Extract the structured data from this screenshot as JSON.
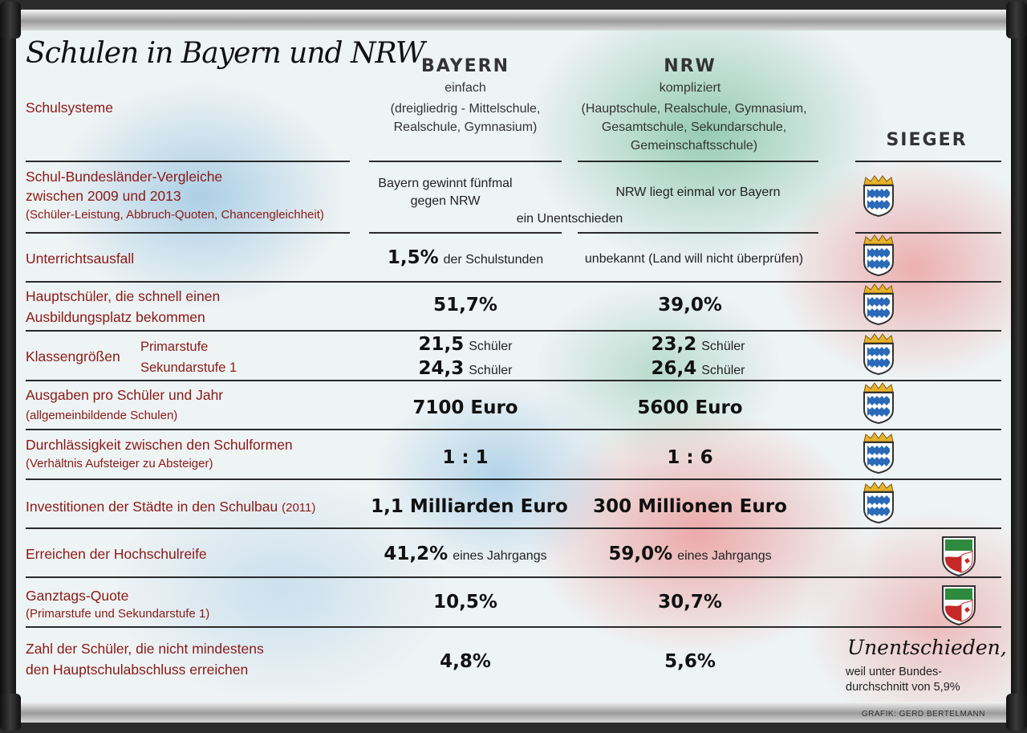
{
  "title": "Schulen in Bayern und NRW",
  "columns": {
    "bayern": {
      "name": "BAYERN",
      "rating": "einfach"
    },
    "nrw": {
      "name": "NRW",
      "rating": "kompliziert"
    },
    "winner": {
      "name": "SIEGER"
    }
  },
  "rows": {
    "schulsysteme": {
      "label": "Schulsysteme",
      "bayern": "(dreigliedrig - Mittelschule, Realschule, Gymnasium)",
      "nrw": "(Hauptschule, Realschule, Gymnasium, Gesamtschule, Sekundarschule, Gemeinschaftsschule)"
    },
    "vergleiche": {
      "label_line1": "Schul-Bundesländer-Vergleiche",
      "label_line2": "zwischen 2009 und 2013",
      "note": "(Schüler-Leistung, Abbruch-Quoten, Chancengleichheit)",
      "bayern_line1": "Bayern gewinnt fünfmal",
      "bayern_line2": "gegen NRW",
      "nrw": "NRW liegt einmal vor Bayern",
      "draw": "ein Unentschieden",
      "winner": "bavaria-crest-icon"
    },
    "unterrichtsausfall": {
      "label": "Unterrichtsausfall",
      "bayern_value": "1,5%",
      "bayern_unit": "der Schulstunden",
      "nrw": "unbekannt (Land will nicht überprüfen)",
      "winner": "bavaria-crest-icon"
    },
    "hauptschueler": {
      "label_line1": "Hauptschüler, die schnell einen",
      "label_line2": "Ausbildungsplatz bekommen",
      "bayern_value": "51,7%",
      "nrw_value": "39,0%",
      "winner": "bavaria-crest-icon"
    },
    "klassengroessen": {
      "label": "Klassengrößen",
      "sub1": "Primarstufe",
      "sub2": "Sekundarstufe 1",
      "bayern_value1": "21,5",
      "bayern_value2": "24,3",
      "nrw_value1": "23,2",
      "nrw_value2": "26,4",
      "unit": "Schüler",
      "winner": "bavaria-crest-icon"
    },
    "ausgaben": {
      "label": "Ausgaben pro Schüler und Jahr",
      "note": "(allgemeinbildende Schulen)",
      "bayern_value": "7100 Euro",
      "nrw_value": "5600 Euro",
      "winner": "bavaria-crest-icon"
    },
    "durchlaessigkeit": {
      "label": "Durchlässigkeit zwischen den Schulformen",
      "note": "(Verhältnis Aufsteiger zu Absteiger)",
      "bayern_value": "1 : 1",
      "nrw_value": "1 : 6",
      "winner": "bavaria-crest-icon"
    },
    "investitionen": {
      "label": "Investitionen der Städte in den Schulbau",
      "year": "(2011)",
      "bayern_value": "1,1 Milliarden Euro",
      "nrw_value": "300 Millionen Euro",
      "winner": "bavaria-crest-icon"
    },
    "hochschulreife": {
      "label": "Erreichen der Hochschulreife",
      "bayern_value": "41,2%",
      "nrw_value": "59,0%",
      "unit": "eines Jahrgangs",
      "winner": "nrw-crest-icon"
    },
    "ganztag": {
      "label": "Ganztags-Quote",
      "note": "(Primarstufe und Sekundarstufe 1)",
      "bayern_value": "10,5%",
      "nrw_value": "30,7%",
      "winner": "nrw-crest-icon"
    },
    "abschluss": {
      "label_line1": "Zahl der Schüler, die nicht mindestens",
      "label_line2": "den Hauptschulabschluss erreichen",
      "bayern_value": "4,8%",
      "nrw_value": "5,6%",
      "winner_text": "Unentschieden,",
      "winner_note_line1": "weil unter Bundes-",
      "winner_note_line2": "durchschnitt von 5,9%"
    }
  },
  "credit": "GRAFIK: GERD BERTELMANN",
  "colors": {
    "label": "#8a1a16",
    "bavaria_blue": "#2a6ab8",
    "nrw_green": "#2e8a3e",
    "nrw_red": "#c62828"
  }
}
